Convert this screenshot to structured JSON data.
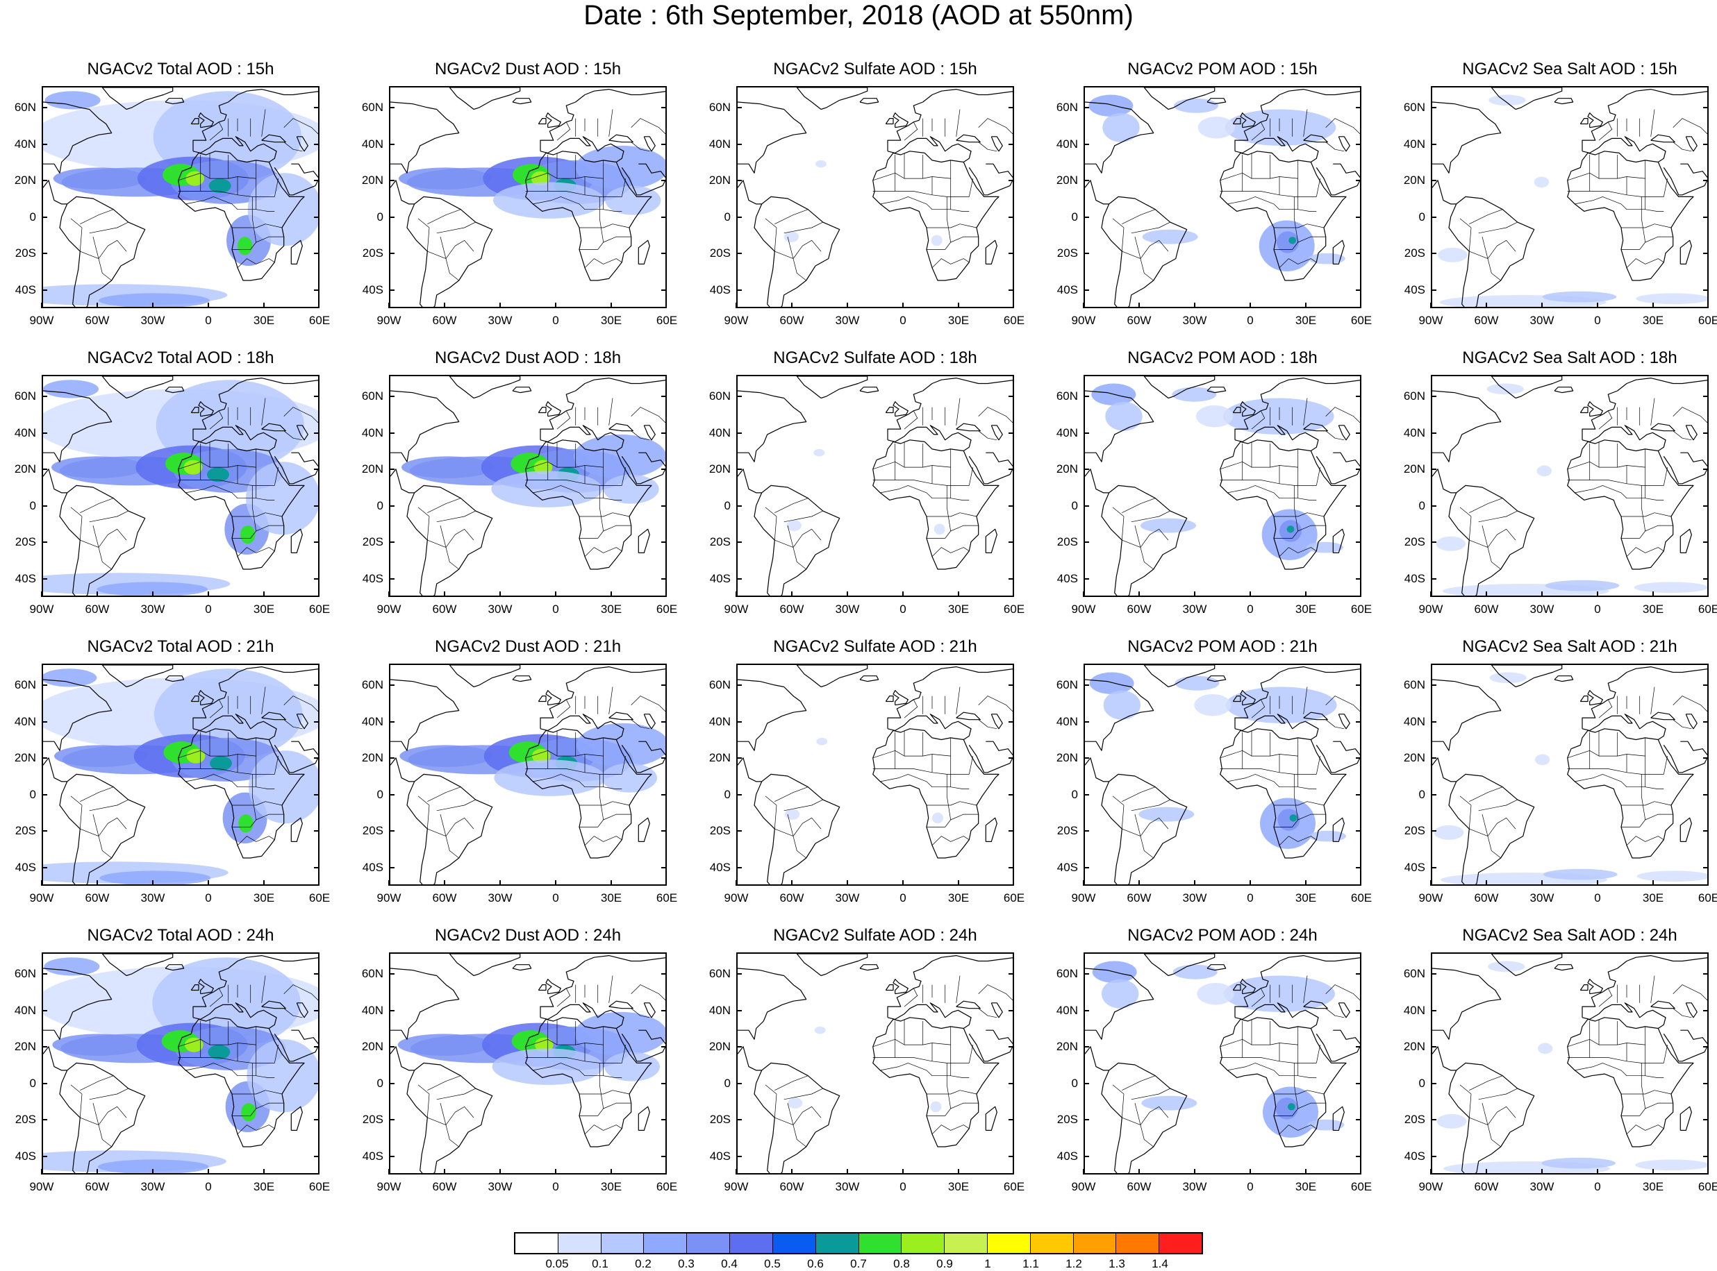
{
  "title": "Date : 6th September, 2018 (AOD at 550nm)",
  "panels": [
    [
      "NGACv2 Total AOD : 15h",
      "NGACv2 Dust AOD : 15h",
      "NGACv2 Sulfate AOD : 15h",
      "NGACv2 POM AOD : 15h",
      "NGACv2 Sea Salt AOD : 15h"
    ],
    [
      "NGACv2 Total AOD : 18h",
      "NGACv2 Dust AOD : 18h",
      "NGACv2 Sulfate AOD : 18h",
      "NGACv2 POM AOD : 18h",
      "NGACv2 Sea Salt AOD : 18h"
    ],
    [
      "NGACv2 Total AOD : 21h",
      "NGACv2 Dust AOD : 21h",
      "NGACv2 Sulfate AOD : 21h",
      "NGACv2 POM AOD : 21h",
      "NGACv2 Sea Salt AOD : 21h"
    ],
    [
      "NGACv2 Total AOD : 24h",
      "NGACv2 Dust AOD : 24h",
      "NGACv2 Sulfate AOD : 24h",
      "NGACv2 POM AOD : 24h",
      "NGACv2 Sea Salt  AOD : 24h"
    ]
  ],
  "lat_labels": [
    "60N",
    "40N",
    "20N",
    "0",
    "20S",
    "40S"
  ],
  "lon_labels": [
    "90W",
    "60W",
    "30W",
    "0",
    "30E",
    "60E"
  ],
  "colorbar": {
    "labels": [
      "0.05",
      "0.1",
      "0.2",
      "0.3",
      "0.4",
      "0.5",
      "0.6",
      "0.7",
      "0.8",
      "0.9",
      "1",
      "1.1",
      "1.2",
      "1.3",
      "1.4"
    ],
    "colors": [
      "#ffffff",
      "#d6e1ff",
      "#b5c8ff",
      "#8fa9ff",
      "#7a92f5",
      "#5d6ff0",
      "#0a5cf0",
      "#0a9a9a",
      "#2fe02f",
      "#9bef1f",
      "#c8f050",
      "#ffff00",
      "#ffc800",
      "#ffa000",
      "#ff7800",
      "#ff1e1e"
    ]
  }
}
